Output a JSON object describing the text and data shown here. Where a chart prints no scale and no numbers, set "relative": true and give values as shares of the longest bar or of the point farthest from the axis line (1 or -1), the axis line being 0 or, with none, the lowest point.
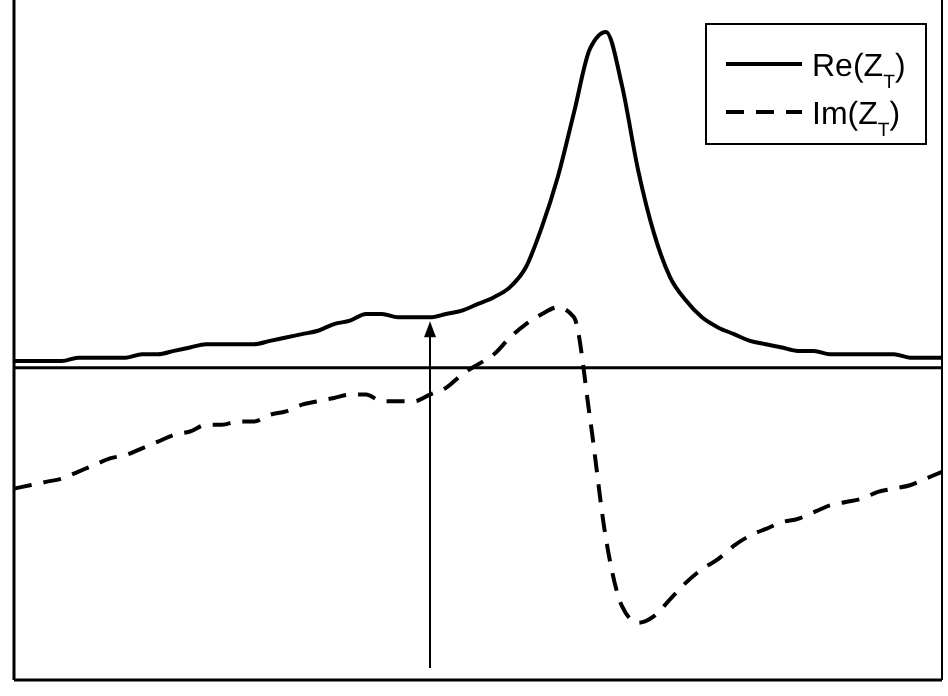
{
  "chart_data": {
    "type": "line",
    "relative": true,
    "legend": "top right",
    "marker": "none",
    "categories": [
      null,
      null,
      null,
      null,
      null,
      null,
      null,
      null,
      null,
      null,
      null,
      null,
      null,
      null,
      null,
      null,
      null,
      null,
      null,
      null,
      null,
      null,
      null,
      null,
      null,
      null,
      null,
      null,
      null,
      null,
      null,
      null,
      null,
      null,
      null,
      null,
      null,
      null,
      null,
      null,
      null,
      null,
      null,
      null,
      null,
      null,
      null,
      null,
      null,
      null,
      null,
      null,
      null,
      null,
      null,
      null,
      null,
      null,
      null
    ],
    "series": [
      {
        "name": "Re(Z$_{T}$)",
        "color": "#000000",
        "line_style": "solid",
        "values": [
          0.02,
          0.02,
          0.02,
          0.02,
          0.03,
          0.03,
          0.03,
          0.03,
          0.04,
          0.04,
          0.05,
          0.06,
          0.07,
          0.07,
          0.07,
          0.07,
          0.08,
          0.09,
          0.1,
          0.11,
          0.13,
          0.14,
          0.16,
          0.16,
          0.15,
          0.15,
          0.15,
          0.16,
          0.17,
          0.19,
          0.21,
          0.24,
          0.3,
          0.42,
          0.57,
          0.76,
          0.95,
          1,
          0.84,
          0.59,
          0.4,
          0.27,
          0.2,
          0.15,
          0.12,
          0.1,
          0.08,
          0.07,
          0.06,
          0.05,
          0.05,
          0.04,
          0.04,
          0.04,
          0.04,
          0.04,
          0.03,
          0.03,
          0.03
        ]
      },
      {
        "name": "Im(Z$_{T}$)",
        "color": "#000000",
        "line_style": "dashed",
        "values": [
          -0.36,
          -0.35,
          -0.34,
          -0.33,
          -0.31,
          -0.29,
          -0.27,
          -0.26,
          -0.24,
          -0.22,
          -0.2,
          -0.19,
          -0.17,
          -0.17,
          -0.16,
          -0.16,
          -0.14,
          -0.13,
          -0.11,
          -0.1,
          -0.09,
          -0.08,
          -0.08,
          -0.1,
          -0.1,
          -0.1,
          -0.08,
          -0.06,
          -0.02,
          0.01,
          0.04,
          0.09,
          0.13,
          0.16,
          0.18,
          0.15,
          -0.15,
          -0.51,
          -0.71,
          -0.76,
          -0.74,
          -0.69,
          -0.64,
          -0.6,
          -0.57,
          -0.53,
          -0.5,
          -0.48,
          -0.46,
          -0.45,
          -0.43,
          -0.41,
          -0.4,
          -0.39,
          -0.37,
          -0.36,
          -0.35,
          -0.33,
          -0.31
        ]
      }
    ]
  }
}
